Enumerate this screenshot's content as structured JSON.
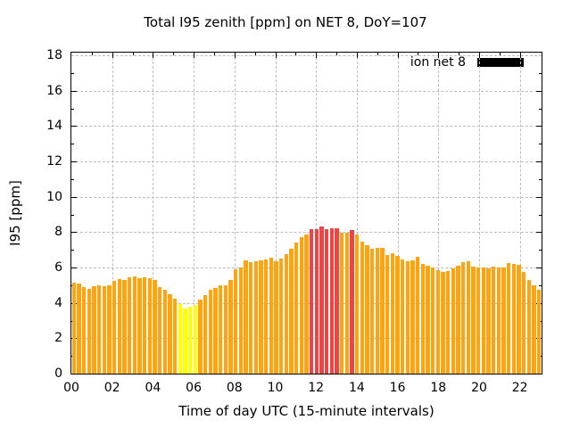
{
  "chart_data": {
    "type": "bar",
    "title": "Total I95 zenith [ppm] on NET 8, DoY=107",
    "xlabel": "Time of day UTC (15-minute intervals)",
    "ylabel": "I95 [ppm]",
    "ylim": [
      0,
      18
    ],
    "ytick_step": 2,
    "interval_minutes": 15,
    "xtick_hours": [
      0,
      2,
      4,
      6,
      8,
      10,
      12,
      14,
      16,
      18,
      20,
      22
    ],
    "xtick_labels": [
      "00",
      "02",
      "04",
      "06",
      "08",
      "10",
      "12",
      "14",
      "16",
      "18",
      "20",
      "22"
    ],
    "grid": true,
    "legend": {
      "label": "ion net 8",
      "swatch_color": "#000000",
      "position": "top-right"
    },
    "colors": {
      "orange": "#FFA30F",
      "yellow": "#FFFF00",
      "red": "#EE4444",
      "axis": "#000000",
      "grid": "#BDBDBD",
      "text": "#000000",
      "background": "#FFFFFF"
    },
    "points": [
      {
        "time": "00:00",
        "value": 5.15,
        "color": "orange"
      },
      {
        "time": "00:15",
        "value": 5.1,
        "color": "orange"
      },
      {
        "time": "00:30",
        "value": 4.9,
        "color": "orange"
      },
      {
        "time": "00:45",
        "value": 4.8,
        "color": "orange"
      },
      {
        "time": "01:00",
        "value": 4.95,
        "color": "orange"
      },
      {
        "time": "01:15",
        "value": 5.0,
        "color": "orange"
      },
      {
        "time": "01:30",
        "value": 4.95,
        "color": "orange"
      },
      {
        "time": "01:45",
        "value": 5.0,
        "color": "orange"
      },
      {
        "time": "02:00",
        "value": 5.25,
        "color": "orange"
      },
      {
        "time": "02:15",
        "value": 5.35,
        "color": "orange"
      },
      {
        "time": "02:30",
        "value": 5.3,
        "color": "orange"
      },
      {
        "time": "02:45",
        "value": 5.45,
        "color": "orange"
      },
      {
        "time": "03:00",
        "value": 5.5,
        "color": "orange"
      },
      {
        "time": "03:15",
        "value": 5.4,
        "color": "orange"
      },
      {
        "time": "03:30",
        "value": 5.45,
        "color": "orange"
      },
      {
        "time": "03:45",
        "value": 5.4,
        "color": "orange"
      },
      {
        "time": "04:00",
        "value": 5.3,
        "color": "orange"
      },
      {
        "time": "04:15",
        "value": 4.9,
        "color": "orange"
      },
      {
        "time": "04:30",
        "value": 4.75,
        "color": "orange"
      },
      {
        "time": "04:45",
        "value": 4.5,
        "color": "orange"
      },
      {
        "time": "05:00",
        "value": 4.25,
        "color": "orange"
      },
      {
        "time": "05:15",
        "value": 3.95,
        "color": "yellow"
      },
      {
        "time": "05:30",
        "value": 3.7,
        "color": "yellow"
      },
      {
        "time": "05:45",
        "value": 3.8,
        "color": "yellow"
      },
      {
        "time": "06:00",
        "value": 3.9,
        "color": "yellow"
      },
      {
        "time": "06:15",
        "value": 4.2,
        "color": "orange"
      },
      {
        "time": "06:30",
        "value": 4.45,
        "color": "orange"
      },
      {
        "time": "06:45",
        "value": 4.75,
        "color": "orange"
      },
      {
        "time": "07:00",
        "value": 4.85,
        "color": "orange"
      },
      {
        "time": "07:15",
        "value": 5.0,
        "color": "orange"
      },
      {
        "time": "07:30",
        "value": 5.0,
        "color": "orange"
      },
      {
        "time": "07:45",
        "value": 5.3,
        "color": "orange"
      },
      {
        "time": "08:00",
        "value": 5.9,
        "color": "orange"
      },
      {
        "time": "08:15",
        "value": 6.0,
        "color": "orange"
      },
      {
        "time": "08:30",
        "value": 6.4,
        "color": "orange"
      },
      {
        "time": "08:45",
        "value": 6.3,
        "color": "orange"
      },
      {
        "time": "09:00",
        "value": 6.35,
        "color": "orange"
      },
      {
        "time": "09:15",
        "value": 6.4,
        "color": "orange"
      },
      {
        "time": "09:30",
        "value": 6.45,
        "color": "orange"
      },
      {
        "time": "09:45",
        "value": 6.55,
        "color": "orange"
      },
      {
        "time": "10:00",
        "value": 6.35,
        "color": "orange"
      },
      {
        "time": "10:15",
        "value": 6.5,
        "color": "orange"
      },
      {
        "time": "10:30",
        "value": 6.75,
        "color": "orange"
      },
      {
        "time": "10:45",
        "value": 7.05,
        "color": "orange"
      },
      {
        "time": "11:00",
        "value": 7.4,
        "color": "orange"
      },
      {
        "time": "11:15",
        "value": 7.7,
        "color": "orange"
      },
      {
        "time": "11:30",
        "value": 7.85,
        "color": "orange"
      },
      {
        "time": "11:45",
        "value": 8.15,
        "color": "red"
      },
      {
        "time": "12:00",
        "value": 8.15,
        "color": "red"
      },
      {
        "time": "12:15",
        "value": 8.3,
        "color": "red"
      },
      {
        "time": "12:30",
        "value": 8.15,
        "color": "red"
      },
      {
        "time": "12:45",
        "value": 8.2,
        "color": "red"
      },
      {
        "time": "13:00",
        "value": 8.2,
        "color": "red"
      },
      {
        "time": "13:15",
        "value": 7.95,
        "color": "orange"
      },
      {
        "time": "13:30",
        "value": 7.95,
        "color": "orange"
      },
      {
        "time": "13:45",
        "value": 8.1,
        "color": "red"
      },
      {
        "time": "14:00",
        "value": 7.85,
        "color": "orange"
      },
      {
        "time": "14:15",
        "value": 7.45,
        "color": "orange"
      },
      {
        "time": "14:30",
        "value": 7.25,
        "color": "orange"
      },
      {
        "time": "14:45",
        "value": 7.05,
        "color": "orange"
      },
      {
        "time": "15:00",
        "value": 7.1,
        "color": "orange"
      },
      {
        "time": "15:15",
        "value": 7.1,
        "color": "orange"
      },
      {
        "time": "15:30",
        "value": 6.7,
        "color": "orange"
      },
      {
        "time": "15:45",
        "value": 6.8,
        "color": "orange"
      },
      {
        "time": "16:00",
        "value": 6.65,
        "color": "orange"
      },
      {
        "time": "16:15",
        "value": 6.45,
        "color": "orange"
      },
      {
        "time": "16:30",
        "value": 6.35,
        "color": "orange"
      },
      {
        "time": "16:45",
        "value": 6.4,
        "color": "orange"
      },
      {
        "time": "17:00",
        "value": 6.6,
        "color": "orange"
      },
      {
        "time": "17:15",
        "value": 6.2,
        "color": "orange"
      },
      {
        "time": "17:30",
        "value": 6.1,
        "color": "orange"
      },
      {
        "time": "17:45",
        "value": 6.0,
        "color": "orange"
      },
      {
        "time": "18:00",
        "value": 5.85,
        "color": "orange"
      },
      {
        "time": "18:15",
        "value": 5.75,
        "color": "orange"
      },
      {
        "time": "18:30",
        "value": 5.8,
        "color": "orange"
      },
      {
        "time": "18:45",
        "value": 5.95,
        "color": "orange"
      },
      {
        "time": "19:00",
        "value": 6.1,
        "color": "orange"
      },
      {
        "time": "19:15",
        "value": 6.3,
        "color": "orange"
      },
      {
        "time": "19:30",
        "value": 6.35,
        "color": "orange"
      },
      {
        "time": "19:45",
        "value": 6.05,
        "color": "orange"
      },
      {
        "time": "20:00",
        "value": 6.0,
        "color": "orange"
      },
      {
        "time": "20:15",
        "value": 6.0,
        "color": "orange"
      },
      {
        "time": "20:30",
        "value": 5.95,
        "color": "orange"
      },
      {
        "time": "20:45",
        "value": 6.05,
        "color": "orange"
      },
      {
        "time": "21:00",
        "value": 6.0,
        "color": "orange"
      },
      {
        "time": "21:15",
        "value": 6.0,
        "color": "orange"
      },
      {
        "time": "21:30",
        "value": 6.25,
        "color": "orange"
      },
      {
        "time": "21:45",
        "value": 6.2,
        "color": "orange"
      },
      {
        "time": "22:00",
        "value": 6.15,
        "color": "orange"
      },
      {
        "time": "22:15",
        "value": 5.75,
        "color": "orange"
      },
      {
        "time": "22:30",
        "value": 5.3,
        "color": "orange"
      },
      {
        "time": "22:45",
        "value": 5.0,
        "color": "orange"
      },
      {
        "time": "23:00",
        "value": 4.75,
        "color": "orange"
      }
    ]
  }
}
